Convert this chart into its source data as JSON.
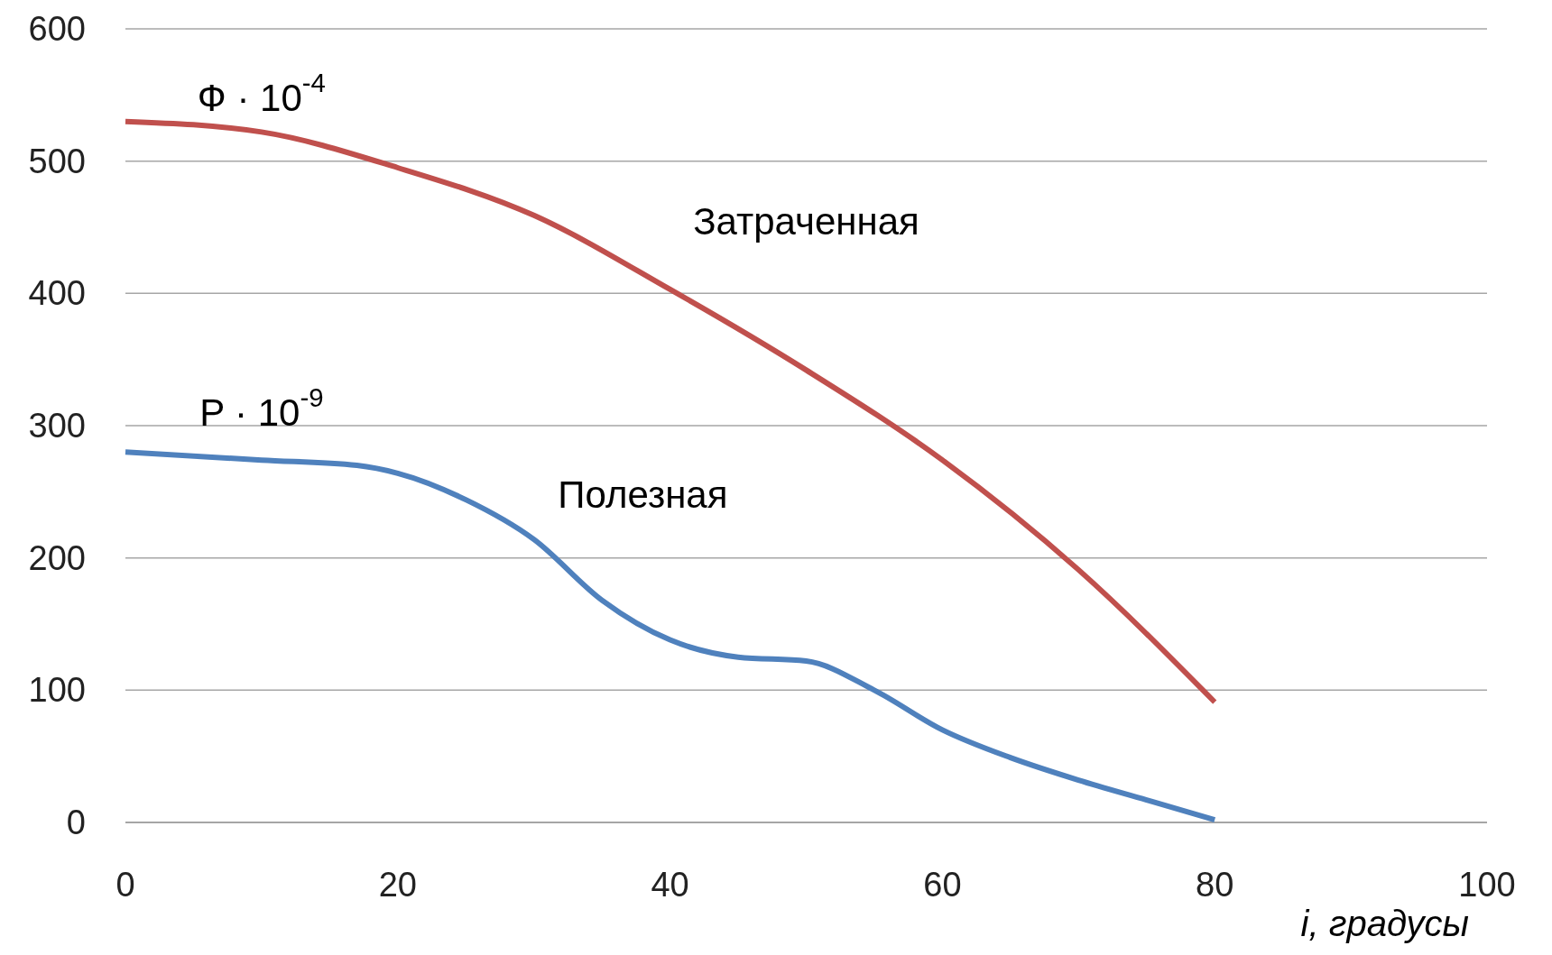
{
  "chart_data": {
    "type": "line",
    "xlabel": "i, градусы",
    "xlim": [
      0,
      100
    ],
    "xticks": [
      0,
      20,
      40,
      60,
      80,
      100
    ],
    "ylim": [
      0,
      600
    ],
    "yticks": [
      0,
      100,
      200,
      300,
      400,
      500,
      600
    ],
    "grid": "y",
    "marker": "none",
    "line_style": "solid",
    "series": [
      {
        "color": "#c0504d",
        "x": [
          0,
          10,
          20,
          30,
          40,
          50,
          60,
          70,
          80
        ],
        "values": [
          530,
          522,
          495,
          459,
          403,
          342,
          274,
          191,
          91
        ]
      },
      {
        "color": "#4f81bd",
        "x": [
          0,
          10,
          17,
          20,
          25,
          30,
          35,
          40,
          45,
          50,
          55,
          60,
          65,
          70,
          75,
          80
        ],
        "values": [
          280,
          274,
          270,
          264,
          244,
          214,
          168,
          138,
          125,
          122,
          100,
          70,
          49,
          32,
          17,
          2
        ]
      }
    ],
    "annotations": [
      "Ф · 10$^{-4}$",
      "Затраченная",
      "P · 10$^{-9}$",
      "Полезная"
    ]
  }
}
